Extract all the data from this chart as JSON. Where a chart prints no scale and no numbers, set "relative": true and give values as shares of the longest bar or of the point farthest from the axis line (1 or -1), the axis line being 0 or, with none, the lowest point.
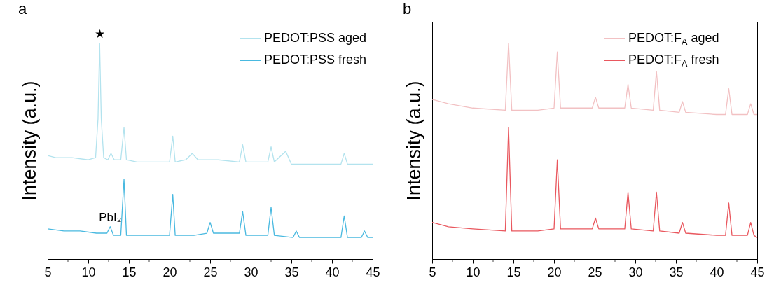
{
  "chart_data": [
    {
      "type": "line",
      "title": "a",
      "ylabel": "Intensity (a.u.)",
      "relative": true,
      "legend": "top right",
      "xlim": [
        5,
        45
      ],
      "xticks": [
        5,
        {
          "value": 7.5,
          "label": null
        },
        10,
        {
          "value": 12.5,
          "label": null
        },
        15,
        {
          "value": 17.5,
          "label": null
        },
        20,
        {
          "value": 22.5,
          "label": null
        },
        25,
        {
          "value": 27.5,
          "label": null
        },
        30,
        {
          "value": 32.5,
          "label": null
        },
        35,
        {
          "value": 37.5,
          "label": null
        },
        40,
        {
          "value": 42.5,
          "label": null
        },
        45
      ],
      "annotations": [
        {
          "text": "★",
          "x": 11.4,
          "y": 1
        },
        {
          "text": "PbI₂",
          "x": 12.7,
          "y": 0.15
        }
      ],
      "series": [
        {
          "name": "PEDOT:PSS aged",
          "color": "#b3e3ee",
          "x": [
            5,
            6,
            8,
            10,
            10.9,
            11.2,
            11.4,
            11.6,
            11.9,
            12.4,
            12.8,
            13.2,
            14.0,
            14.4,
            14.7,
            16,
            18,
            20.0,
            20.4,
            20.7,
            22,
            22.8,
            23.5,
            26,
            28.6,
            29.0,
            29.4,
            32.1,
            32.5,
            32.9,
            34.3,
            35,
            38,
            41.1,
            41.5,
            41.9,
            44,
            45
          ],
          "values": [
            0.48,
            0.47,
            0.47,
            0.46,
            0.47,
            0.65,
            1,
            0.65,
            0.47,
            0.46,
            0.49,
            0.46,
            0.46,
            0.61,
            0.46,
            0.45,
            0.45,
            0.45,
            0.57,
            0.45,
            0.46,
            0.49,
            0.46,
            0.46,
            0.45,
            0.53,
            0.45,
            0.45,
            0.52,
            0.45,
            0.5,
            0.44,
            0.44,
            0.44,
            0.49,
            0.44,
            0.44,
            0.44
          ]
        },
        {
          "name": "PEDOT:PSS fresh",
          "color": "#49b9e0",
          "x": [
            5,
            7,
            9,
            11,
            12.3,
            12.7,
            13.1,
            14.0,
            14.4,
            14.7,
            17,
            20.0,
            20.4,
            20.7,
            23,
            24.6,
            25.0,
            25.4,
            28.6,
            29.0,
            29.4,
            32.1,
            32.5,
            32.9,
            35.2,
            35.6,
            36,
            40,
            41.1,
            41.5,
            41.9,
            43.6,
            44,
            44.4,
            45
          ],
          "values": [
            0.14,
            0.13,
            0.13,
            0.12,
            0.12,
            0.15,
            0.11,
            0.11,
            0.37,
            0.11,
            0.11,
            0.11,
            0.3,
            0.11,
            0.11,
            0.12,
            0.17,
            0.12,
            0.12,
            0.22,
            0.11,
            0.11,
            0.24,
            0.11,
            0.1,
            0.13,
            0.1,
            0.1,
            0.1,
            0.2,
            0.1,
            0.1,
            0.13,
            0.1,
            0.1
          ]
        }
      ]
    },
    {
      "type": "line",
      "title": "b",
      "ylabel": "Intensity (a.u.)",
      "relative": true,
      "legend": "top right",
      "xlim": [
        5,
        45
      ],
      "xticks": [
        5,
        {
          "value": 7.5,
          "label": null
        },
        10,
        {
          "value": 12.5,
          "label": null
        },
        15,
        {
          "value": 17.5,
          "label": null
        },
        20,
        {
          "value": 22.5,
          "label": null
        },
        25,
        {
          "value": 27.5,
          "label": null
        },
        30,
        {
          "value": 32.5,
          "label": null
        },
        35,
        {
          "value": 37.5,
          "label": null
        },
        40,
        {
          "value": 42.5,
          "label": null
        },
        45
      ],
      "series": [
        {
          "name": "PEDOT:F$_{A}$ aged",
          "color": "#f2c1c3",
          "x": [
            5,
            7,
            10,
            14.0,
            14.4,
            14.8,
            18,
            20.0,
            20.4,
            20.8,
            24.7,
            25.1,
            25.5,
            28.7,
            29.1,
            29.5,
            32.2,
            32.6,
            33,
            35.4,
            35.8,
            36.2,
            40,
            41.1,
            41.5,
            41.9,
            43.8,
            44.2,
            44.6,
            45
          ],
          "values": [
            0.74,
            0.72,
            0.7,
            0.69,
            1,
            0.69,
            0.69,
            0.7,
            0.96,
            0.7,
            0.7,
            0.75,
            0.7,
            0.7,
            0.81,
            0.7,
            0.69,
            0.87,
            0.69,
            0.68,
            0.73,
            0.68,
            0.67,
            0.67,
            0.79,
            0.67,
            0.67,
            0.72,
            0.67,
            0.67
          ]
        },
        {
          "name": "PEDOT:F$_{A}$ fresh",
          "color": "#e9575e",
          "x": [
            5,
            7,
            10,
            14.0,
            14.4,
            14.8,
            18,
            20.0,
            20.4,
            20.8,
            24.7,
            25.1,
            25.5,
            28.7,
            29.1,
            29.5,
            32.2,
            32.6,
            33,
            35.4,
            35.8,
            36.2,
            40,
            41.1,
            41.5,
            41.9,
            43.8,
            44.2,
            44.6,
            45
          ],
          "values": [
            0.17,
            0.15,
            0.14,
            0.13,
            0.61,
            0.13,
            0.13,
            0.14,
            0.46,
            0.14,
            0.14,
            0.19,
            0.14,
            0.14,
            0.31,
            0.14,
            0.13,
            0.31,
            0.13,
            0.12,
            0.17,
            0.12,
            0.11,
            0.11,
            0.26,
            0.11,
            0.11,
            0.17,
            0.11,
            0.1
          ]
        }
      ]
    }
  ]
}
